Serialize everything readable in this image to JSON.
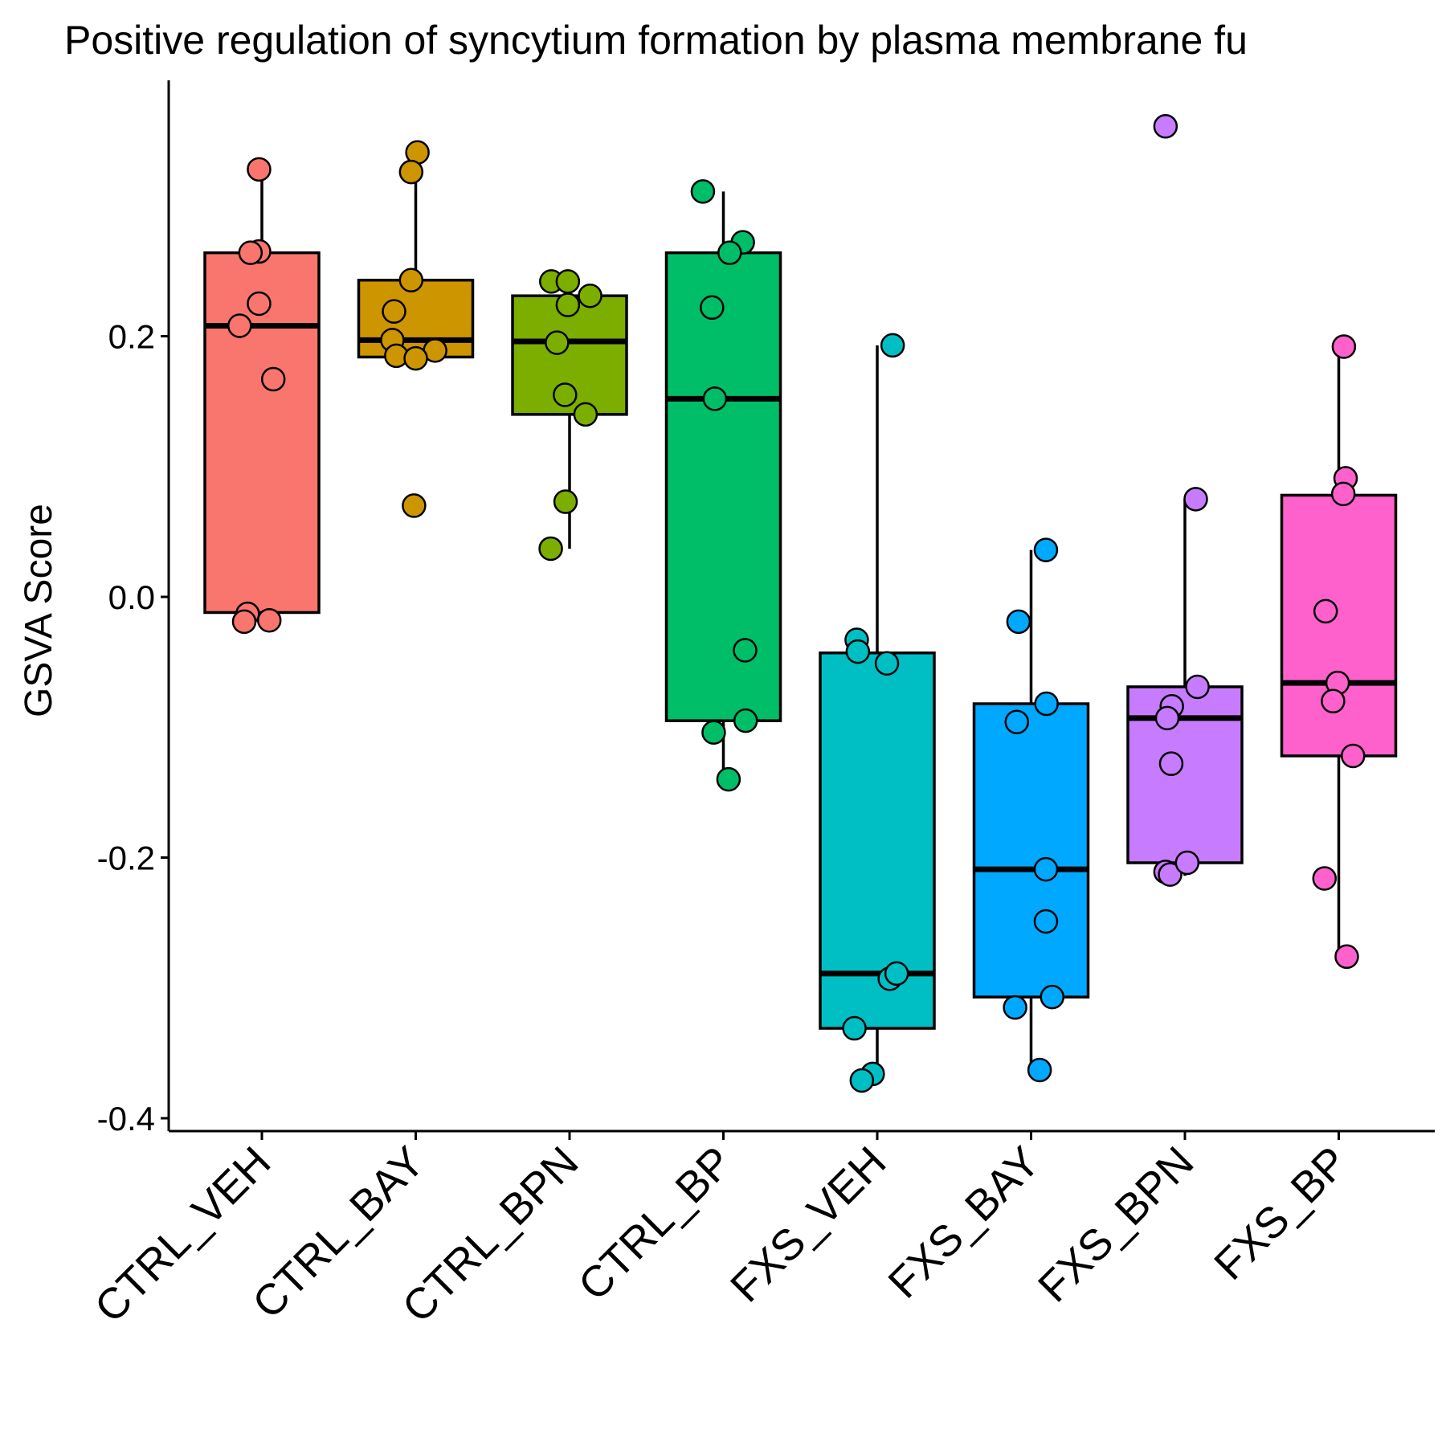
{
  "chart_data": {
    "type": "box",
    "title": "Positive regulation of syncytium formation by plasma membrane fu",
    "xlabel": "",
    "ylabel": "GSVA Score",
    "ylim": [
      -0.405,
      0.395
    ],
    "yticks": [
      -0.4,
      -0.2,
      0.0,
      0.2
    ],
    "ytick_labels": [
      "-0.4",
      "-0.2",
      "0.0",
      "0.2"
    ],
    "grid": false,
    "legend": "none",
    "categories": [
      "CTRL_VEH",
      "CTRL_BAY",
      "CTRL_BPN",
      "CTRL_BP",
      "FXS_VEH",
      "FXS_BAY",
      "FXS_BPN",
      "FXS_BP"
    ],
    "groups": [
      {
        "name": "CTRL_VEH",
        "color": "#F8766D",
        "box": {
          "min": -0.012,
          "q1": -0.012,
          "median": 0.208,
          "q3": 0.264,
          "max": 0.328
        },
        "points": [
          {
            "dx": -0.05,
            "y": 0.328
          },
          {
            "dx": -0.05,
            "y": 0.265
          },
          {
            "dx": -0.2,
            "y": 0.264
          },
          {
            "dx": -0.05,
            "y": 0.225
          },
          {
            "dx": -0.39,
            "y": 0.208
          },
          {
            "dx": 0.2,
            "y": 0.167
          },
          {
            "dx": -0.25,
            "y": -0.013
          },
          {
            "dx": -0.31,
            "y": -0.019
          },
          {
            "dx": 0.13,
            "y": -0.018
          }
        ]
      },
      {
        "name": "CTRL_BAY",
        "color": "#CD9600",
        "box": {
          "min": 0.184,
          "q1": 0.184,
          "median": 0.197,
          "q3": 0.243,
          "max": 0.34
        },
        "points": [
          {
            "dx": 0.03,
            "y": 0.341
          },
          {
            "dx": -0.08,
            "y": 0.326
          },
          {
            "dx": -0.08,
            "y": 0.243
          },
          {
            "dx": -0.38,
            "y": 0.219
          },
          {
            "dx": -0.41,
            "y": 0.197
          },
          {
            "dx": 0.34,
            "y": 0.189
          },
          {
            "dx": -0.34,
            "y": 0.185
          },
          {
            "dx": 0.0,
            "y": 0.183
          },
          {
            "dx": -0.03,
            "y": 0.07
          }
        ]
      },
      {
        "name": "CTRL_BPN",
        "color": "#7CAE00",
        "box": {
          "min": 0.037,
          "q1": 0.14,
          "median": 0.196,
          "q3": 0.231,
          "max": 0.231
        },
        "points": [
          {
            "dx": -0.32,
            "y": 0.242
          },
          {
            "dx": -0.03,
            "y": 0.242
          },
          {
            "dx": 0.36,
            "y": 0.231
          },
          {
            "dx": -0.03,
            "y": 0.224
          },
          {
            "dx": -0.22,
            "y": 0.195
          },
          {
            "dx": -0.08,
            "y": 0.155
          },
          {
            "dx": 0.28,
            "y": 0.14
          },
          {
            "dx": -0.07,
            "y": 0.073
          },
          {
            "dx": -0.33,
            "y": 0.037
          }
        ]
      },
      {
        "name": "CTRL_BP",
        "color": "#00BE67",
        "box": {
          "min": -0.14,
          "q1": -0.095,
          "median": 0.152,
          "q3": 0.264,
          "max": 0.311
        },
        "points": [
          {
            "dx": -0.36,
            "y": 0.311
          },
          {
            "dx": 0.34,
            "y": 0.272
          },
          {
            "dx": 0.11,
            "y": 0.264
          },
          {
            "dx": -0.2,
            "y": 0.222
          },
          {
            "dx": -0.15,
            "y": 0.152
          },
          {
            "dx": 0.38,
            "y": -0.041
          },
          {
            "dx": 0.39,
            "y": -0.095
          },
          {
            "dx": -0.17,
            "y": -0.104
          },
          {
            "dx": 0.09,
            "y": -0.14
          }
        ]
      },
      {
        "name": "FXS_VEH",
        "color": "#00BFC4",
        "box": {
          "min": -0.37,
          "q1": -0.331,
          "median": -0.289,
          "q3": -0.043,
          "max": 0.193
        },
        "points": [
          {
            "dx": 0.27,
            "y": 0.193
          },
          {
            "dx": -0.36,
            "y": -0.033
          },
          {
            "dx": -0.34,
            "y": -0.042
          },
          {
            "dx": 0.17,
            "y": -0.051
          },
          {
            "dx": 0.22,
            "y": -0.293
          },
          {
            "dx": 0.34,
            "y": -0.289
          },
          {
            "dx": -0.4,
            "y": -0.331
          },
          {
            "dx": -0.08,
            "y": -0.366
          },
          {
            "dx": -0.27,
            "y": -0.371
          }
        ]
      },
      {
        "name": "FXS_BAY",
        "color": "#00A9FF",
        "box": {
          "min": -0.36,
          "q1": -0.307,
          "median": -0.209,
          "q3": -0.082,
          "max": 0.036
        },
        "points": [
          {
            "dx": 0.26,
            "y": 0.036
          },
          {
            "dx": -0.22,
            "y": -0.019
          },
          {
            "dx": 0.27,
            "y": -0.082
          },
          {
            "dx": -0.25,
            "y": -0.096
          },
          {
            "dx": 0.26,
            "y": -0.209
          },
          {
            "dx": 0.26,
            "y": -0.249
          },
          {
            "dx": 0.37,
            "y": -0.307
          },
          {
            "dx": -0.28,
            "y": -0.315
          },
          {
            "dx": 0.15,
            "y": -0.363
          }
        ]
      },
      {
        "name": "FXS_BPN",
        "color": "#C77CFF",
        "box": {
          "min": -0.214,
          "q1": -0.204,
          "median": -0.093,
          "q3": -0.069,
          "max": 0.075
        },
        "points": [
          {
            "dx": -0.34,
            "y": 0.361
          },
          {
            "dx": 0.19,
            "y": 0.075
          },
          {
            "dx": 0.22,
            "y": -0.069
          },
          {
            "dx": -0.23,
            "y": -0.084
          },
          {
            "dx": -0.31,
            "y": -0.093
          },
          {
            "dx": -0.24,
            "y": -0.128
          },
          {
            "dx": -0.34,
            "y": -0.211
          },
          {
            "dx": -0.26,
            "y": -0.213
          },
          {
            "dx": 0.04,
            "y": -0.204
          }
        ]
      },
      {
        "name": "FXS_BP",
        "color": "#FF61CC",
        "box": {
          "min": -0.275,
          "q1": -0.122,
          "median": -0.066,
          "q3": 0.078,
          "max": 0.192
        },
        "points": [
          {
            "dx": 0.09,
            "y": 0.192
          },
          {
            "dx": 0.12,
            "y": 0.091
          },
          {
            "dx": 0.08,
            "y": 0.079
          },
          {
            "dx": -0.23,
            "y": -0.011
          },
          {
            "dx": -0.02,
            "y": -0.066
          },
          {
            "dx": -0.1,
            "y": -0.08
          },
          {
            "dx": 0.25,
            "y": -0.122
          },
          {
            "dx": -0.25,
            "y": -0.216
          },
          {
            "dx": 0.14,
            "y": -0.276
          }
        ]
      }
    ]
  }
}
